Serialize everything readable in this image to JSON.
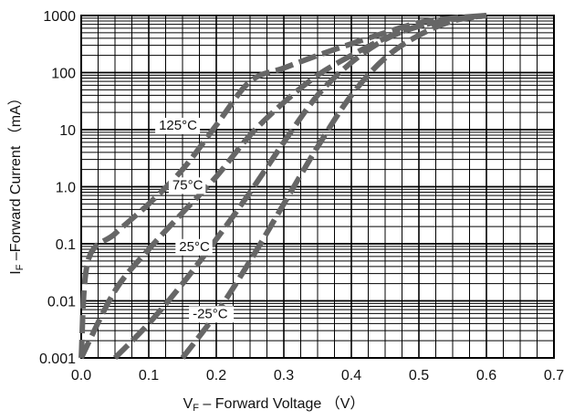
{
  "chart_data": {
    "type": "line",
    "title": "",
    "xlabel": {
      "main": "V",
      "sub": "F",
      "rest": " – Forward Voltage （V）"
    },
    "ylabel": {
      "main": "I",
      "sub": "F",
      "rest": " –Forward Current （mA）"
    },
    "x_ticks": [
      "0.0",
      "0.1",
      "0.2",
      "0.3",
      "0.4",
      "0.5",
      "0.6",
      "0.7"
    ],
    "y_ticks": [
      "0.001",
      "0.01",
      "0.1",
      "1.0",
      "10",
      "100",
      "1000"
    ],
    "xlim": [
      0,
      0.7
    ],
    "ylim": [
      0.001,
      1000
    ],
    "y_scale": "log",
    "grid": true,
    "series": [
      {
        "name": "125°C",
        "x": [
          0.0,
          0.01,
          0.05,
          0.1,
          0.15,
          0.2,
          0.25,
          0.3,
          0.35,
          0.4,
          0.45,
          0.5,
          0.55,
          0.6
        ],
        "y": [
          0.001,
          0.05,
          0.15,
          0.5,
          2,
          12,
          70,
          120,
          200,
          320,
          500,
          750,
          900,
          1000
        ]
      },
      {
        "name": "75°C",
        "x": [
          0.0,
          0.05,
          0.1,
          0.15,
          0.2,
          0.25,
          0.3,
          0.35,
          0.4,
          0.45,
          0.5,
          0.55,
          0.6
        ],
        "y": [
          0.001,
          0.015,
          0.08,
          0.35,
          1.5,
          8,
          30,
          90,
          200,
          400,
          650,
          850,
          1000
        ]
      },
      {
        "name": "25°C",
        "x": [
          0.05,
          0.1,
          0.15,
          0.2,
          0.25,
          0.3,
          0.35,
          0.4,
          0.45,
          0.5,
          0.55,
          0.6
        ],
        "y": [
          0.001,
          0.004,
          0.02,
          0.12,
          0.8,
          6,
          40,
          150,
          380,
          650,
          850,
          1000
        ]
      },
      {
        "name": "-25°C",
        "x": [
          0.15,
          0.2,
          0.25,
          0.3,
          0.35,
          0.4,
          0.45,
          0.5,
          0.55,
          0.6
        ],
        "y": [
          0.001,
          0.006,
          0.05,
          0.5,
          5,
          40,
          180,
          450,
          800,
          1000
        ]
      }
    ]
  }
}
